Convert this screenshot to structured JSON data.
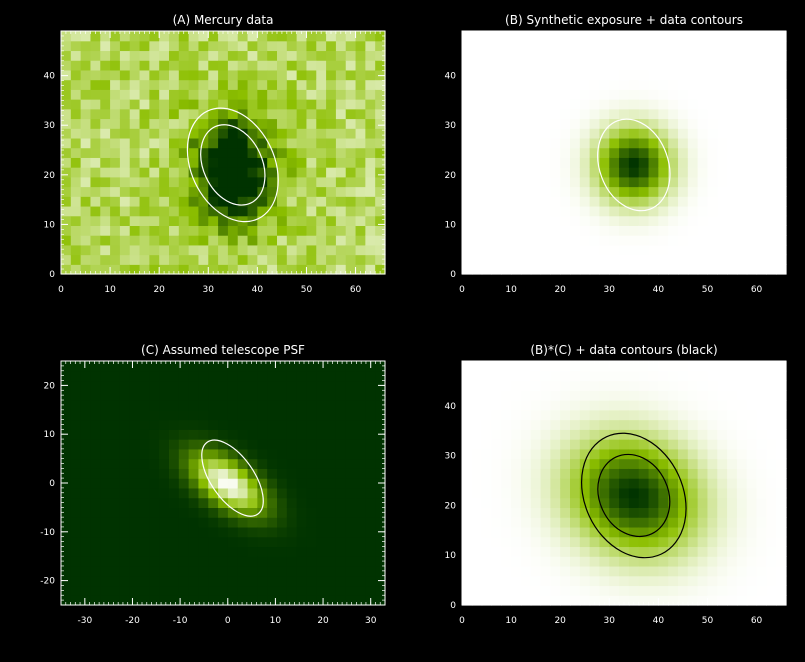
{
  "chart_data": [
    {
      "type": "heatmap",
      "title": "(A) Mercury data",
      "xlim": [
        0,
        66
      ],
      "ylim": [
        0,
        49
      ],
      "xticks": [
        "0",
        "10",
        "20",
        "30",
        "40",
        "50",
        "60"
      ],
      "yticks": [
        "0",
        "10",
        "20",
        "30",
        "40"
      ],
      "colormap": [
        "#ffffff",
        "#8cbf00",
        "#003300"
      ],
      "blob": {
        "center": [
          35,
          21
        ],
        "sigma": [
          5.5,
          7.5
        ],
        "peak": 1.0,
        "background": 0.32,
        "noise": 0.16
      },
      "contours": [
        {
          "center": [
            35,
            22
          ],
          "radii": [
            8.5,
            12.0
          ],
          "angle_deg": 65,
          "color": "#ffffff"
        },
        {
          "center": [
            35,
            22
          ],
          "radii": [
            6.0,
            8.5
          ],
          "angle_deg": 65,
          "color": "#ffffff"
        }
      ]
    },
    {
      "type": "heatmap",
      "title": "(B) Synthetic exposure + data contours",
      "xlim": [
        0,
        66
      ],
      "ylim": [
        0,
        49
      ],
      "xticks": [
        "0",
        "10",
        "20",
        "30",
        "40",
        "50",
        "60"
      ],
      "yticks": [
        "0",
        "10",
        "20",
        "30",
        "40"
      ],
      "colormap": [
        "#ffffff",
        "#8cbf00",
        "#003300"
      ],
      "blob": {
        "center": [
          35,
          22
        ],
        "sigma": [
          5.0,
          5.0
        ],
        "peak": 1.0,
        "background": 0.0,
        "noise": 0.0
      },
      "contours": [
        {
          "center": [
            35,
            22
          ],
          "radii": [
            7.0,
            9.5
          ],
          "angle_deg": 70,
          "color": "#ffffff"
        }
      ]
    },
    {
      "type": "heatmap",
      "title": "(C) Assumed telescope PSF",
      "xlim": [
        -35,
        33
      ],
      "ylim": [
        -25,
        25
      ],
      "xticks": [
        "-30",
        "-20",
        "-10",
        "0",
        "10",
        "20",
        "30"
      ],
      "yticks": [
        "-20",
        "-10",
        "0",
        "10",
        "20"
      ],
      "colormap": [
        "#003300",
        "#8cbf00",
        "#ffffff"
      ],
      "blob": {
        "center": [
          0,
          0
        ],
        "sigma": [
          3.0,
          6.0
        ],
        "angle_deg": 55,
        "peak": 1.0,
        "background": 0.0,
        "noise": 0.0
      },
      "contours": [
        {
          "center": [
            1,
            1
          ],
          "radii": [
            4.5,
            9.0
          ],
          "angle_deg": 55,
          "color": "#ffffff"
        }
      ]
    },
    {
      "type": "heatmap",
      "title": "(B)*(C) + data contours (black)",
      "xlim": [
        0,
        66
      ],
      "ylim": [
        0,
        49
      ],
      "xticks": [
        "0",
        "10",
        "20",
        "30",
        "40",
        "50",
        "60"
      ],
      "yticks": [
        "0",
        "10",
        "20",
        "30",
        "40"
      ],
      "colormap": [
        "#ffffff",
        "#8cbf00",
        "#003300"
      ],
      "blob": {
        "center": [
          35,
          22
        ],
        "sigma": [
          7.5,
          9.0
        ],
        "angle_deg": 65,
        "peak": 1.0,
        "background": 0.0,
        "noise": 0.0
      },
      "contours": [
        {
          "center": [
            35,
            22
          ],
          "radii": [
            10.0,
            13.0
          ],
          "angle_deg": 65,
          "color": "#000000"
        },
        {
          "center": [
            35,
            22
          ],
          "radii": [
            7.0,
            8.5
          ],
          "angle_deg": 65,
          "color": "#000000"
        }
      ]
    }
  ]
}
